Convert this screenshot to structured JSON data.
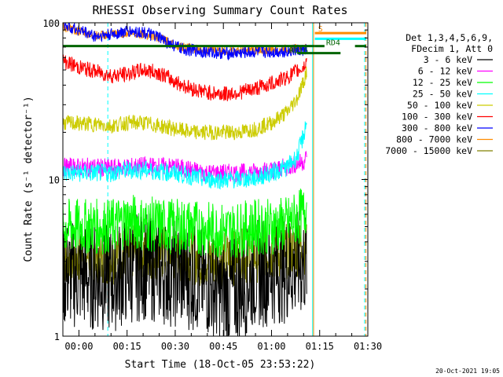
{
  "chart_data": {
    "type": "line",
    "title": "RHESSI Observing Summary Count Rates",
    "xlabel": "Start Time (18-Oct-05 23:53:22)",
    "ylabel": "Count Rate (s⁻¹ detector⁻¹)",
    "y_scale": "log",
    "ylim": [
      1,
      100
    ],
    "xlim_minutes": [
      -5,
      90
    ],
    "y_ticks": [
      {
        "value": 1,
        "label": "1"
      },
      {
        "value": 10,
        "label": "10"
      },
      {
        "value": 100,
        "label": "100"
      }
    ],
    "x_ticks": [
      {
        "value": 0,
        "label": "00:00"
      },
      {
        "value": 15,
        "label": "00:15"
      },
      {
        "value": 30,
        "label": "00:30"
      },
      {
        "value": 45,
        "label": "00:45"
      },
      {
        "value": 60,
        "label": "01:00"
      },
      {
        "value": 75,
        "label": "01:15"
      },
      {
        "value": 90,
        "label": "01:30"
      }
    ],
    "legend_header": [
      "Det 1,3,4,5,6,9,",
      "FDecim 1, Att 0"
    ],
    "series": [
      {
        "name": "3 - 6 keV",
        "color": "#000000",
        "x": [
          -5,
          5,
          10,
          15,
          20,
          30,
          35,
          40,
          45,
          50,
          55,
          60,
          65,
          70,
          71
        ],
        "y": [
          2.5,
          2.4,
          2.3,
          2.6,
          2.8,
          2.5,
          2.4,
          2.2,
          1.8,
          2.0,
          2.5,
          2.6,
          2.7,
          2.9,
          3.0
        ]
      },
      {
        "name": "6 - 12 keV",
        "color": "#ff00ff",
        "x": [
          -5,
          5,
          10,
          15,
          20,
          30,
          35,
          40,
          45,
          50,
          55,
          60,
          65,
          70,
          71
        ],
        "y": [
          12,
          12,
          11.8,
          12,
          12.2,
          12,
          11.5,
          11,
          11,
          11,
          11.2,
          11.5,
          12,
          13,
          14
        ]
      },
      {
        "name": "12 - 25 keV",
        "color": "#00ff00",
        "x": [
          -5,
          5,
          10,
          15,
          20,
          30,
          35,
          40,
          45,
          50,
          55,
          60,
          65,
          70,
          71
        ],
        "y": [
          5,
          5,
          5,
          5.5,
          5.2,
          5,
          5,
          4.8,
          4.7,
          4.8,
          5,
          5,
          5.2,
          6,
          7
        ]
      },
      {
        "name": "25 - 50 keV",
        "color": "#00ffff",
        "x": [
          -5,
          5,
          10,
          15,
          20,
          30,
          35,
          40,
          45,
          50,
          55,
          60,
          65,
          68,
          70,
          71
        ],
        "y": [
          11,
          11,
          11,
          11.5,
          11.5,
          11,
          10.5,
          10,
          10,
          10,
          10.2,
          11,
          12,
          14,
          19,
          24
        ]
      },
      {
        "name": "50 - 100 keV",
        "color": "#cccc00",
        "x": [
          -5,
          5,
          10,
          15,
          20,
          30,
          35,
          40,
          45,
          50,
          55,
          60,
          65,
          68,
          70,
          71
        ],
        "y": [
          23,
          22.5,
          22,
          23,
          23,
          21,
          20,
          20,
          20,
          20,
          21,
          23,
          27,
          33,
          42,
          50
        ]
      },
      {
        "name": "100 - 300 keV",
        "color": "#ff0000",
        "x": [
          -5,
          0,
          5,
          10,
          15,
          20,
          25,
          30,
          35,
          40,
          45,
          50,
          55,
          60,
          65,
          70,
          71
        ],
        "y": [
          57,
          52,
          49,
          46,
          47,
          50,
          48,
          42,
          38,
          36,
          35,
          36,
          38,
          41,
          45,
          52,
          58
        ]
      },
      {
        "name": "300 - 800 keV",
        "color": "#0000ff",
        "x": [
          -5,
          0,
          5,
          10,
          15,
          20,
          25,
          28,
          32,
          40,
          45,
          50,
          55,
          60,
          65,
          70,
          71
        ],
        "y": [
          98,
          90,
          82,
          84,
          88,
          87,
          80,
          74,
          68,
          65,
          64,
          64,
          65,
          65,
          66,
          67,
          68
        ]
      },
      {
        "name": "800 - 7000 keV",
        "color": "#ff8c00",
        "x": [
          -5,
          0,
          5,
          10,
          15,
          20,
          25,
          28,
          32,
          40,
          45,
          50,
          55,
          60,
          65,
          70,
          71
        ],
        "y": [
          94,
          88,
          83,
          84,
          86,
          85,
          80,
          75,
          70,
          67,
          66,
          66,
          67,
          67,
          68,
          69,
          70
        ]
      },
      {
        "name": "7000 - 15000 keV",
        "color": "#808000",
        "x": [
          -5,
          5,
          10,
          15,
          20,
          30,
          35,
          40,
          45,
          50,
          55,
          60,
          65,
          70,
          71
        ],
        "y": [
          3.2,
          3.3,
          3.2,
          3.4,
          3.5,
          3.3,
          3.2,
          3.1,
          3.1,
          3.2,
          3.3,
          3.4,
          3.5,
          3.7,
          3.8
        ]
      }
    ],
    "annotations": [
      {
        "label": "S",
        "color": "#ff8c00",
        "x_minutes": 74.5,
        "y": 88
      },
      {
        "label": "RD4",
        "color": "#006400",
        "x_minutes": 77,
        "y": 72
      },
      {
        "label": "RD16",
        "color": "#006400",
        "x_minutes": 65.5,
        "y": 64
      }
    ],
    "state_bars": [
      {
        "color": "#ff8c00",
        "x_start": 73.5,
        "x_end": 89.5,
        "y": 86
      },
      {
        "color": "#00ffff",
        "x_start": 73.5,
        "x_end": 89.5,
        "y": 79
      },
      {
        "color": "#006400",
        "x_start": -5,
        "x_end": 73.5,
        "y": 71
      },
      {
        "color": "#006400",
        "x_start": 73.5,
        "x_end": 76.5,
        "y": 71
      },
      {
        "color": "#006400",
        "x_start": 86,
        "x_end": 89.5,
        "y": 71
      },
      {
        "color": "#006400",
        "x_start": 68,
        "x_end": 81.5,
        "y": 64
      }
    ],
    "vertical_lines": [
      {
        "color": "#00ffff",
        "x_minutes": -5,
        "style": "solid"
      },
      {
        "color": "#00ffff",
        "x_minutes": 9,
        "style": "dashed"
      },
      {
        "color": "#00ffff",
        "x_minutes": 72.8,
        "style": "solid"
      },
      {
        "color": "#ff8c00",
        "x_minutes": 73.1,
        "style": "solid"
      },
      {
        "color": "#00ffff",
        "x_minutes": 89,
        "style": "dashed"
      },
      {
        "color": "#ff8c00",
        "x_minutes": 89.4,
        "style": "dashed"
      }
    ],
    "footer_timestamp": "20-Oct-2021 19:05"
  }
}
